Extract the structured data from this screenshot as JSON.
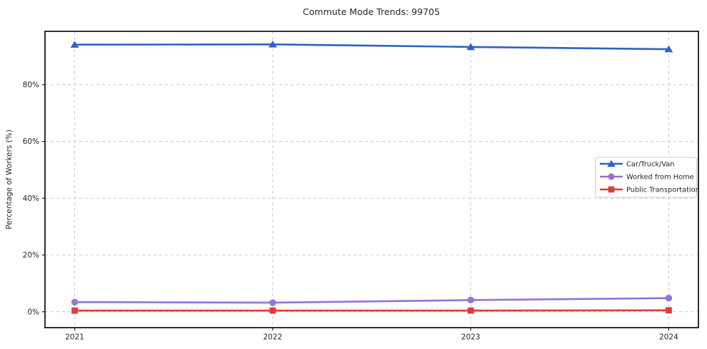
{
  "chart_data": {
    "type": "line",
    "title": "Commute Mode Trends: 99705",
    "xlabel": "",
    "ylabel": "Percentage of Workers (%)",
    "x": [
      2021,
      2022,
      2023,
      2024
    ],
    "xtick_labels": [
      "2021",
      "2022",
      "2023",
      "2024"
    ],
    "series": [
      {
        "name": "Car/Truck/Van",
        "color": "#2c63c4",
        "marker": "triangle",
        "values": [
          94.1,
          94.2,
          93.3,
          92.5
        ]
      },
      {
        "name": "Worked from Home",
        "color": "#9572d9",
        "marker": "circle",
        "values": [
          3.4,
          3.2,
          4.1,
          4.8
        ]
      },
      {
        "name": "Public Transportation",
        "color": "#de3c3c",
        "marker": "square",
        "values": [
          0.4,
          0.4,
          0.4,
          0.5
        ]
      }
    ],
    "yticks": [
      0,
      20,
      40,
      60,
      80
    ],
    "ytick_labels": [
      "0%",
      "20%",
      "40%",
      "60%",
      "80%"
    ],
    "ylim": [
      -5.6,
      98.8
    ],
    "xlim": [
      2020.85,
      2024.15
    ],
    "grid": true,
    "grid_style": "dashed",
    "legend_position": "center-right",
    "colors": {
      "background": "#ffffff",
      "grid": "#c9c9c9",
      "spine": "#1a1a1a",
      "text": "#262626",
      "legend_border": "#cccccc",
      "legend_background": "#ffffff"
    }
  }
}
